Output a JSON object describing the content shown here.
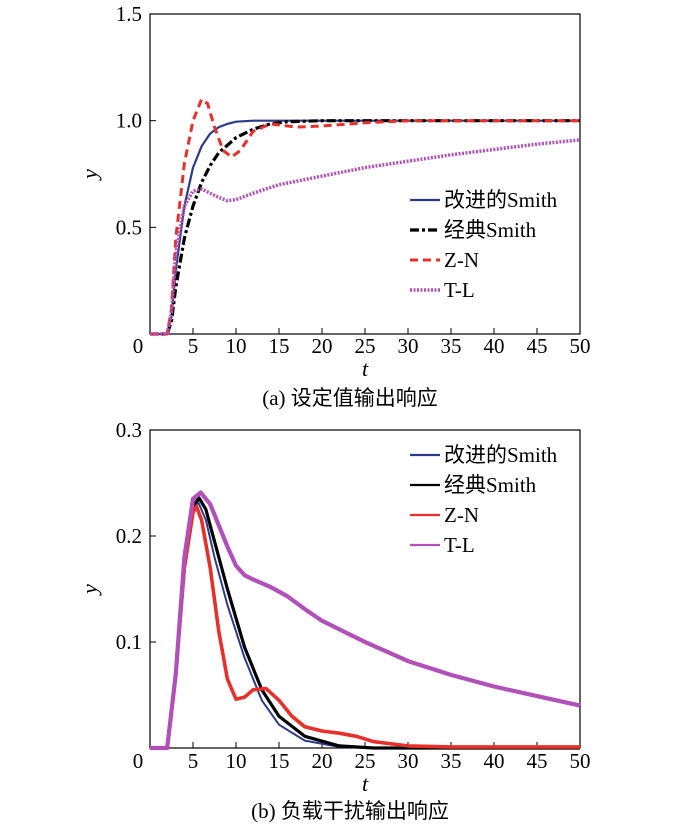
{
  "charts": [
    {
      "type": "line",
      "caption": "(a) 设定值输出响应",
      "xlabel": "t",
      "ylabel": "y",
      "xlim": [
        0,
        50
      ],
      "ylim": [
        0,
        1.5
      ],
      "xticks": [
        "0",
        "5",
        "10",
        "15",
        "20",
        "25",
        "30",
        "35",
        "40",
        "45",
        "50"
      ],
      "yticks": [
        "0.5",
        "1.0",
        "1.5"
      ],
      "ytick_values": [
        0.5,
        1.0,
        1.5
      ],
      "legend_position": "center-right",
      "series": [
        {
          "name": "改进的Smith",
          "color": "#2c3a8c",
          "style": "solid",
          "x": [
            0,
            2,
            2.5,
            3,
            4,
            5,
            6,
            7,
            8,
            9,
            10,
            12,
            15,
            20,
            30,
            50
          ],
          "y": [
            0,
            0,
            0.08,
            0.3,
            0.6,
            0.78,
            0.88,
            0.94,
            0.97,
            0.985,
            0.995,
            1.0,
            1.0,
            1.0,
            1.0,
            1.0
          ]
        },
        {
          "name": "经典Smith",
          "color": "#000000",
          "style": "dashdot",
          "x": [
            0,
            2,
            2.5,
            3,
            4,
            5,
            6,
            7,
            8,
            10,
            12,
            14,
            16,
            20,
            30,
            50
          ],
          "y": [
            0,
            0,
            0.06,
            0.22,
            0.45,
            0.6,
            0.71,
            0.79,
            0.85,
            0.92,
            0.96,
            0.985,
            0.995,
            1.0,
            1.0,
            1.0
          ]
        },
        {
          "name": "Z-N",
          "color": "#e8302a",
          "style": "dashed",
          "x": [
            0,
            2,
            2.5,
            3,
            4,
            5,
            6,
            6.7,
            7.5,
            8.5,
            9.5,
            10.5,
            12,
            14,
            17,
            20,
            25,
            30,
            50
          ],
          "y": [
            0,
            0,
            0.12,
            0.45,
            0.8,
            1.0,
            1.1,
            1.08,
            0.97,
            0.86,
            0.83,
            0.86,
            0.95,
            0.985,
            0.97,
            0.975,
            0.99,
            1.0,
            1.0
          ]
        },
        {
          "name": "T-L",
          "color": "#b050b8",
          "style": "dotted",
          "x": [
            0,
            2,
            2.5,
            3,
            4,
            5,
            6,
            7,
            8,
            9,
            10,
            12,
            15,
            20,
            25,
            30,
            35,
            40,
            45,
            50
          ],
          "y": [
            0,
            0,
            0.1,
            0.38,
            0.6,
            0.67,
            0.68,
            0.66,
            0.64,
            0.625,
            0.63,
            0.66,
            0.7,
            0.74,
            0.78,
            0.81,
            0.84,
            0.865,
            0.89,
            0.91
          ]
        }
      ]
    },
    {
      "type": "line",
      "caption": "(b) 负载干扰输出响应",
      "xlabel": "t",
      "ylabel": "y",
      "xlim": [
        0,
        50
      ],
      "ylim": [
        0,
        0.3
      ],
      "xticks": [
        "0",
        "5",
        "10",
        "15",
        "20",
        "25",
        "30",
        "35",
        "40",
        "45",
        "50"
      ],
      "yticks": [
        "0.1",
        "0.2",
        "0.3"
      ],
      "ytick_values": [
        0.1,
        0.2,
        0.3
      ],
      "legend_position": "top-right",
      "series": [
        {
          "name": "改进的Smith",
          "color": "#2c3a8c",
          "style": "solid",
          "x": [
            0,
            2,
            3,
            4,
            5,
            5.6,
            6.5,
            7.5,
            9,
            11,
            13,
            15,
            18,
            22,
            26,
            30,
            50
          ],
          "y": [
            0,
            0,
            0.07,
            0.17,
            0.225,
            0.232,
            0.215,
            0.18,
            0.135,
            0.085,
            0.045,
            0.022,
            0.007,
            0.001,
            0,
            0,
            0
          ]
        },
        {
          "name": "经典Smith",
          "color": "#000000",
          "style": "solid",
          "x": [
            0,
            2,
            3,
            4,
            5,
            5.7,
            6.5,
            7.5,
            9,
            11,
            13,
            15,
            18,
            22,
            26,
            30,
            50
          ],
          "y": [
            0,
            0,
            0.07,
            0.17,
            0.228,
            0.236,
            0.225,
            0.195,
            0.15,
            0.095,
            0.055,
            0.03,
            0.011,
            0.002,
            0,
            0,
            0
          ]
        },
        {
          "name": "Z-N",
          "color": "#e8302a",
          "style": "solid",
          "x": [
            0,
            2,
            3,
            4,
            5,
            5.4,
            6,
            7,
            8,
            9,
            10,
            11,
            12,
            13.5,
            15,
            16.5,
            18,
            20,
            22,
            24,
            26,
            30,
            35,
            50
          ],
          "y": [
            0,
            0,
            0.07,
            0.17,
            0.222,
            0.228,
            0.215,
            0.17,
            0.11,
            0.065,
            0.046,
            0.048,
            0.055,
            0.056,
            0.045,
            0.03,
            0.02,
            0.016,
            0.014,
            0.011,
            0.006,
            0.002,
            0.001,
            0.001
          ]
        },
        {
          "name": "T-L",
          "color": "#b050b8",
          "style": "solid",
          "x": [
            0,
            2,
            3,
            4,
            5,
            5.9,
            7,
            8,
            9,
            10,
            11,
            12,
            14,
            16,
            18,
            20,
            25,
            30,
            35,
            40,
            45,
            50
          ],
          "y": [
            0,
            0,
            0.07,
            0.18,
            0.235,
            0.241,
            0.23,
            0.21,
            0.19,
            0.172,
            0.163,
            0.159,
            0.152,
            0.143,
            0.131,
            0.12,
            0.1,
            0.082,
            0.069,
            0.058,
            0.049,
            0.04
          ]
        }
      ]
    }
  ]
}
